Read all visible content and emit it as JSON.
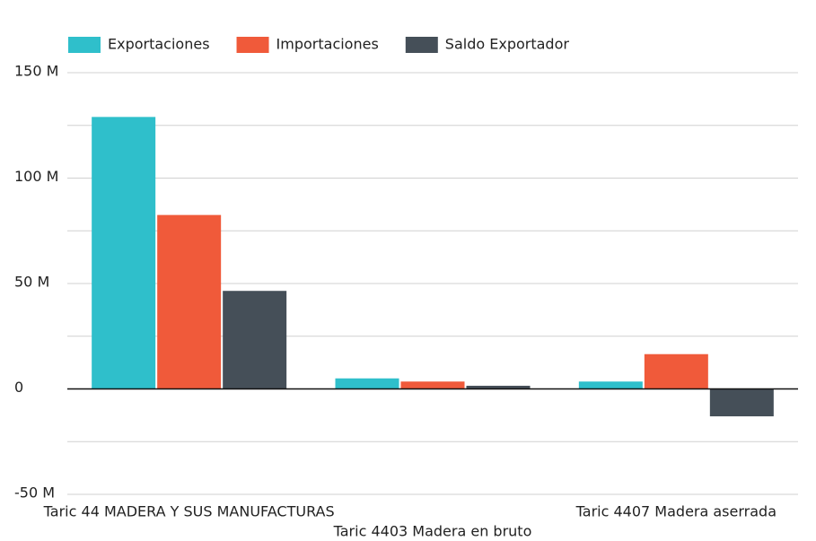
{
  "chart_data": {
    "type": "bar",
    "categories": [
      "Taric 44 MADERA Y SUS MANUFACTURAS",
      "Taric 4403 Madera en bruto",
      "Taric 4407 Madera aserrada"
    ],
    "series": [
      {
        "name": "Exportaciones",
        "color": "#2fbfcb",
        "values": [
          129,
          5,
          3.5
        ]
      },
      {
        "name": "Importaciones",
        "color": "#f05a3a",
        "values": [
          82.5,
          3.5,
          16.5
        ]
      },
      {
        "name": "Saldo Exportador",
        "color": "#454f58",
        "values": [
          46.5,
          1.5,
          -13
        ]
      }
    ],
    "ylim": [
      -50,
      150
    ],
    "yticks": [
      {
        "value": -50,
        "label": "-50 M"
      },
      0,
      {
        "value": 50,
        "label": "50 M"
      },
      {
        "value": 100,
        "label": "100 M"
      },
      {
        "value": 150,
        "label": "150 M"
      }
    ],
    "ygrid": [
      -25,
      25,
      75,
      125
    ],
    "grid": true,
    "legend": "top"
  }
}
